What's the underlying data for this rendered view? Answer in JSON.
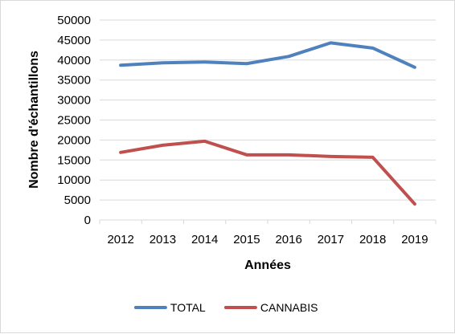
{
  "chart_data": {
    "type": "line",
    "title": "",
    "xlabel": "Années",
    "ylabel": "Nombre d'échantillons",
    "categories": [
      "2012",
      "2013",
      "2014",
      "2015",
      "2016",
      "2017",
      "2018",
      "2019"
    ],
    "ylim": [
      0,
      50000
    ],
    "yticks": [
      0,
      5000,
      10000,
      15000,
      20000,
      25000,
      30000,
      35000,
      40000,
      45000,
      50000
    ],
    "grid": true,
    "legend_position": "bottom",
    "series": [
      {
        "name": "TOTAL",
        "color": "#4f81bd",
        "values": [
          38700,
          39300,
          39500,
          39100,
          40900,
          44300,
          43000,
          38200
        ]
      },
      {
        "name": "CANNABIS",
        "color": "#c0504d",
        "values": [
          16900,
          18700,
          19700,
          16300,
          16300,
          15900,
          15700,
          4000
        ]
      }
    ]
  }
}
